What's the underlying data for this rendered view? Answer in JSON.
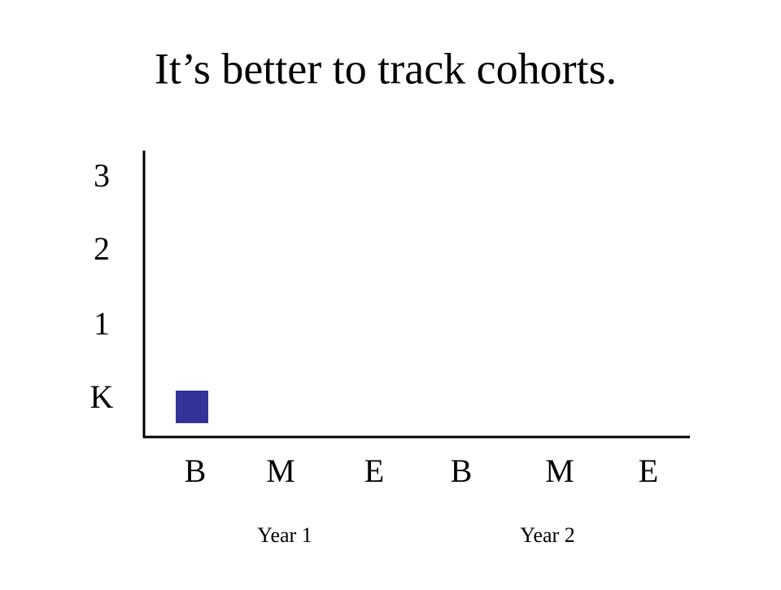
{
  "header": {
    "title": "It’s better to track cohorts."
  },
  "diagram": {
    "y_labels": [
      "K",
      "1",
      "2",
      "3"
    ],
    "x_labels": [
      "B",
      "M",
      "E",
      "B",
      "M",
      "E"
    ],
    "groups": [
      "Year 1",
      "Year 2"
    ]
  }
}
